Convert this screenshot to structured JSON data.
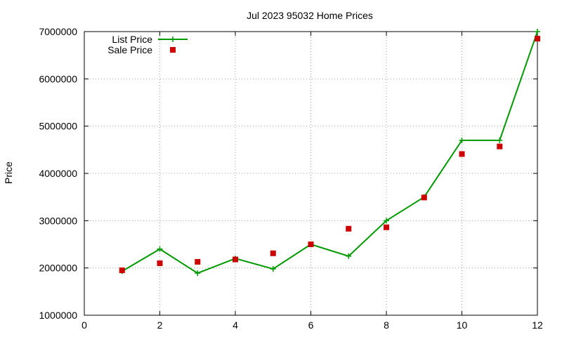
{
  "chart_data": {
    "type": "line",
    "title": "Jul 2023 95032 Home Prices",
    "xlabel": "",
    "ylabel": "Price",
    "xlim": [
      0,
      12
    ],
    "ylim": [
      1000000,
      7000000
    ],
    "xticks": [
      0,
      2,
      4,
      6,
      8,
      10,
      12
    ],
    "yticks": [
      1000000,
      2000000,
      3000000,
      4000000,
      5000000,
      6000000,
      7000000
    ],
    "xtick_labels": [
      "0",
      "2",
      "4",
      "6",
      "8",
      "10",
      "12"
    ],
    "ytick_labels": [
      "1000000",
      "2000000",
      "3000000",
      "4000000",
      "5000000",
      "6000000",
      "7000000"
    ],
    "grid": true,
    "legend_position": "top-left",
    "x": [
      1,
      2,
      3,
      4,
      5,
      6,
      7,
      8,
      9,
      10,
      11,
      12
    ],
    "series": [
      {
        "name": "List Price",
        "style": "line-plus",
        "color": "#009900",
        "values": [
          1930000,
          2400000,
          1890000,
          2200000,
          1980000,
          2500000,
          2250000,
          3000000,
          3500000,
          4700000,
          4700000,
          7000000
        ]
      },
      {
        "name": "Sale Price",
        "style": "square-points",
        "color": "#cc0000",
        "values": [
          1950000,
          2100000,
          2130000,
          2180000,
          2310000,
          2500000,
          2830000,
          2860000,
          3490000,
          4410000,
          4570000,
          6850000
        ]
      }
    ]
  }
}
